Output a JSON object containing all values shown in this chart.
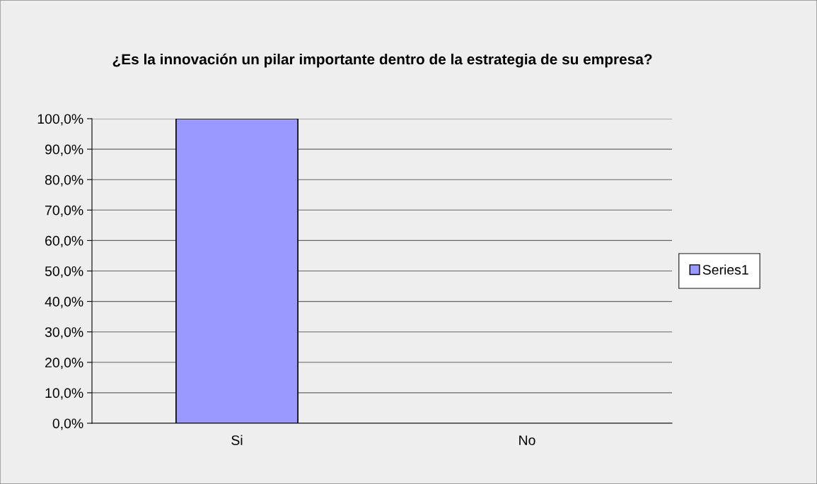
{
  "chart_data": {
    "type": "bar",
    "title": "¿Es la innovación un pilar importante dentro de la estrategia de su empresa?",
    "categories": [
      "Si",
      "No"
    ],
    "series": [
      {
        "name": "Series1",
        "color": "#9999ff",
        "values": [
          100,
          0
        ]
      }
    ],
    "ylim": [
      0,
      100
    ],
    "yticks": [
      {
        "value": 0,
        "label": "0,0%"
      },
      {
        "value": 10,
        "label": "10,0%"
      },
      {
        "value": 20,
        "label": "20,0%"
      },
      {
        "value": 30,
        "label": "30,0%"
      },
      {
        "value": 40,
        "label": "40,0%"
      },
      {
        "value": 50,
        "label": "50,0%"
      },
      {
        "value": 60,
        "label": "60,0%"
      },
      {
        "value": 70,
        "label": "70,0%"
      },
      {
        "value": 80,
        "label": "80,0%"
      },
      {
        "value": 90,
        "label": "90,0%"
      },
      {
        "value": 100,
        "label": "100,0%"
      }
    ],
    "grid": "y",
    "legend": "right"
  }
}
